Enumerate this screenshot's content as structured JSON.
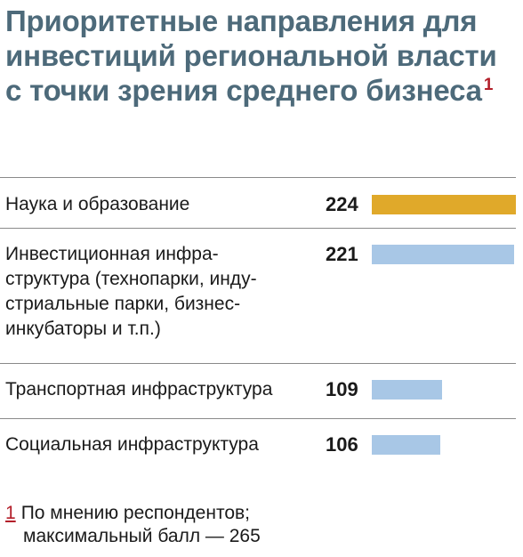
{
  "title": {
    "text": "Приоритетные направления для инвестиций региональной власти с точки зрения среднего бизнеса",
    "footnote_mark": "1"
  },
  "chart_data": {
    "type": "bar",
    "orientation": "horizontal",
    "title": "Приоритетные направления для инвестиций региональной власти с точки зрения среднего бизнеса",
    "categories": [
      "Наука и образование",
      "Инвестиционная инфра-структура (технопарки, инду-стриальные парки, бизнес-инкубаторы и т.п.)",
      "Транспортная инфраструктура",
      "Социальная инфраструктура"
    ],
    "values": [
      224,
      221,
      109,
      106
    ],
    "value_labels": [
      "224",
      "221",
      "109",
      "106"
    ],
    "xlim": [
      0,
      224
    ],
    "grid": false,
    "colors": {
      "highlight": "#e0a92a",
      "default": "#a8c7e6",
      "title": "#4d6a7a",
      "footnote_accent": "#b31f2a"
    }
  },
  "rows": [
    {
      "label_lines": [
        "Наука и образование"
      ]
    },
    {
      "label_lines": [
        "Инвестиционная инфра-",
        "структура (технопарки, инду-",
        "стриальные парки, бизнес-",
        "инкубаторы и т.п.)"
      ]
    },
    {
      "label_lines": [
        "Транспортная инфраструктура"
      ]
    },
    {
      "label_lines": [
        "Социальная инфраструктура"
      ]
    }
  ],
  "footnote": {
    "number": "1",
    "line1": "По мнению респондентов;",
    "line2": "максимальный балл — 265"
  }
}
